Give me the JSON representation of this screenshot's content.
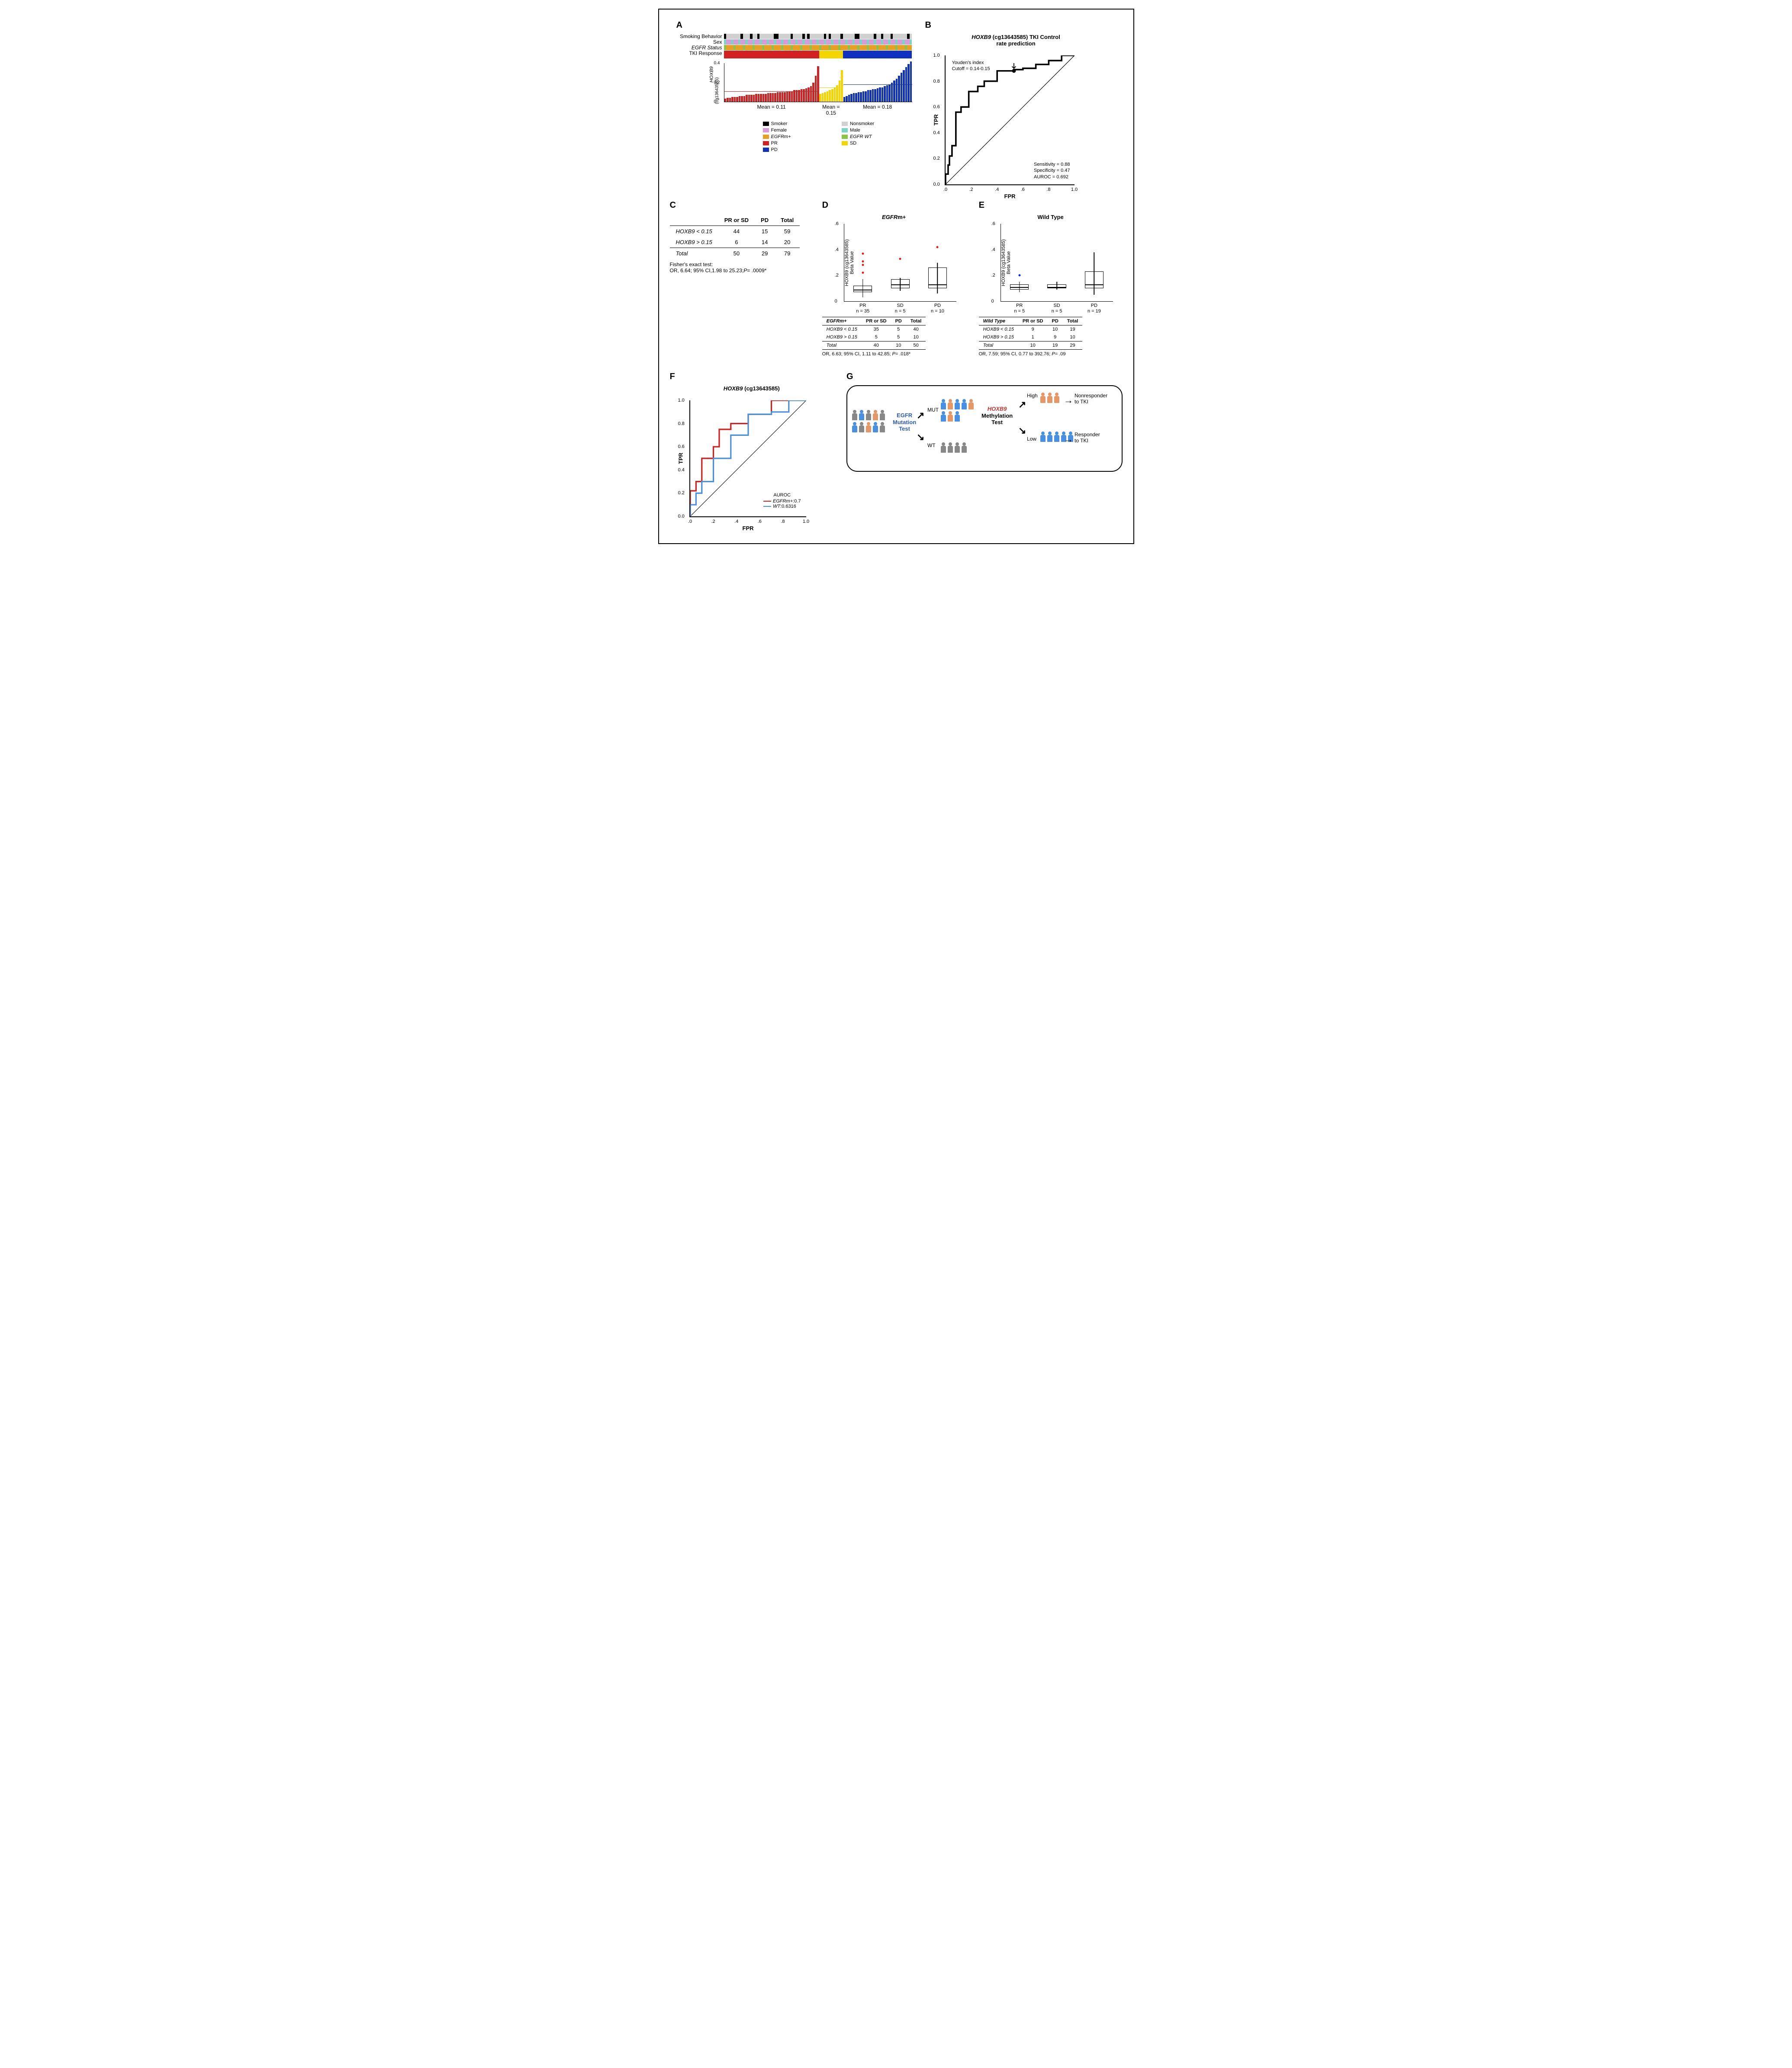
{
  "colors": {
    "smoker": "#000000",
    "nonsmoker": "#d0d0d0",
    "female": "#d89bd8",
    "male": "#7bd4c4",
    "egfrm": "#e8a023",
    "egfrwt": "#8bc34a",
    "pr": "#d32020",
    "sd": "#f5d500",
    "pd": "#1030c0",
    "grey": "#888888",
    "orange": "#e59866",
    "blue": "#4a90e2",
    "red_line": "#d32020",
    "blue_line": "#4a90e2",
    "text_blue": "#2e5cb8",
    "text_red": "#cc3333"
  },
  "panelA": {
    "tracks": [
      "Smoking Behavior",
      "Sex",
      "EGFR Status",
      "TKI Response"
    ],
    "ylabel1": "HOXB9",
    "ylabel2": "(cg13643585)",
    "ymax": 0.4,
    "yticks": [
      0,
      0.2,
      0.4
    ],
    "groups": [
      {
        "name": "PR",
        "color": "#d32020",
        "mean": 0.11,
        "n": 40,
        "bars": [
          0.03,
          0.04,
          0.04,
          0.05,
          0.05,
          0.05,
          0.06,
          0.06,
          0.06,
          0.07,
          0.07,
          0.07,
          0.07,
          0.08,
          0.08,
          0.08,
          0.08,
          0.08,
          0.09,
          0.09,
          0.09,
          0.09,
          0.1,
          0.1,
          0.1,
          0.1,
          0.11,
          0.11,
          0.11,
          0.12,
          0.12,
          0.12,
          0.13,
          0.13,
          0.14,
          0.15,
          0.16,
          0.2,
          0.27,
          0.37
        ]
      },
      {
        "name": "SD",
        "color": "#f5d500",
        "mean": 0.15,
        "n": 10,
        "bars": [
          0.08,
          0.09,
          0.1,
          0.11,
          0.12,
          0.13,
          0.15,
          0.17,
          0.22,
          0.33
        ]
      },
      {
        "name": "PD",
        "color": "#1030c0",
        "mean": 0.18,
        "n": 29,
        "bars": [
          0.05,
          0.06,
          0.07,
          0.08,
          0.09,
          0.09,
          0.1,
          0.1,
          0.11,
          0.11,
          0.12,
          0.12,
          0.13,
          0.13,
          0.14,
          0.15,
          0.15,
          0.16,
          0.17,
          0.18,
          0.2,
          0.22,
          0.24,
          0.27,
          0.3,
          0.33,
          0.36,
          0.39,
          0.42
        ]
      }
    ],
    "legend": [
      {
        "label": "Smoker",
        "colorKey": "smoker"
      },
      {
        "label": "Nonsmoker",
        "colorKey": "nonsmoker"
      },
      {
        "label": "Female",
        "colorKey": "female"
      },
      {
        "label": "Male",
        "colorKey": "male"
      },
      {
        "label": "EGFRm+",
        "colorKey": "egfrm",
        "italic": true
      },
      {
        "label": "EGFR WT",
        "colorKey": "egfrwt",
        "italic": true
      },
      {
        "label": "PR",
        "colorKey": "pr"
      },
      {
        "label": "SD",
        "colorKey": "sd"
      },
      {
        "label": "PD",
        "colorKey": "pd"
      }
    ]
  },
  "panelB": {
    "title": "HOXB9 (cg13643585) TKI Control rate prediction",
    "ylabel": "TPR",
    "xlabel": "FPR",
    "ticks": [
      0,
      0.2,
      0.4,
      0.6,
      0.8,
      1.0
    ],
    "annot_top": "Youden's index\nCutoff = 0.14-0.15",
    "annot_bottom": "Sensitivity = 0.88\nSpecificity = 0.47\nAUROC = 0.692",
    "roc_path": [
      [
        0,
        0
      ],
      [
        0,
        0.08
      ],
      [
        0.02,
        0.08
      ],
      [
        0.02,
        0.15
      ],
      [
        0.03,
        0.15
      ],
      [
        0.03,
        0.22
      ],
      [
        0.05,
        0.22
      ],
      [
        0.05,
        0.3
      ],
      [
        0.08,
        0.3
      ],
      [
        0.08,
        0.56
      ],
      [
        0.12,
        0.56
      ],
      [
        0.12,
        0.6
      ],
      [
        0.18,
        0.6
      ],
      [
        0.18,
        0.72
      ],
      [
        0.25,
        0.72
      ],
      [
        0.25,
        0.76
      ],
      [
        0.3,
        0.76
      ],
      [
        0.3,
        0.8
      ],
      [
        0.4,
        0.8
      ],
      [
        0.4,
        0.88
      ],
      [
        0.53,
        0.88
      ],
      [
        0.53,
        0.89
      ],
      [
        0.6,
        0.89
      ],
      [
        0.6,
        0.9
      ],
      [
        0.7,
        0.9
      ],
      [
        0.7,
        0.93
      ],
      [
        0.8,
        0.93
      ],
      [
        0.8,
        0.96
      ],
      [
        0.9,
        0.96
      ],
      [
        0.9,
        1.0
      ],
      [
        1.0,
        1.0
      ]
    ],
    "youden_point": [
      0.53,
      0.88
    ]
  },
  "panelC": {
    "headers": [
      "",
      "PR or SD",
      "PD",
      "Total"
    ],
    "rows": [
      {
        "label": "HOXB9 < 0.15",
        "vals": [
          44,
          15,
          59
        ]
      },
      {
        "label": "HOXB9 > 0.15",
        "vals": [
          6,
          14,
          20
        ]
      },
      {
        "label": "Total",
        "vals": [
          50,
          29,
          79
        ],
        "total": true
      }
    ],
    "caption": "Fisher's exact test:\nOR, 6.64; 95% CI,1.98 to 25.23;P= .0009*"
  },
  "panelD": {
    "title": "EGFRm+",
    "ylabel": "HOXB9 (cg13643585)\nBeta Value",
    "ymax": 0.6,
    "yticks": [
      0,
      0.2,
      0.4,
      0.6
    ],
    "cats": [
      {
        "label": "PR",
        "n": 35,
        "q1": 0.07,
        "med": 0.09,
        "q3": 0.12,
        "lo": 0.03,
        "hi": 0.17,
        "outliers": [
          0.22,
          0.28,
          0.31,
          0.37
        ]
      },
      {
        "label": "SD",
        "n": 5,
        "q1": 0.1,
        "med": 0.13,
        "q3": 0.17,
        "lo": 0.08,
        "hi": 0.18,
        "outliers": [
          0.33
        ]
      },
      {
        "label": "PD",
        "n": 10,
        "q1": 0.1,
        "med": 0.13,
        "q3": 0.26,
        "lo": 0.06,
        "hi": 0.3,
        "outliers": [
          0.42
        ]
      }
    ],
    "dot_color": "#d32020",
    "table": {
      "headers": [
        "EGFRm+",
        "PR or SD",
        "PD",
        "Total"
      ],
      "rows": [
        {
          "label": "HOXB9 < 0.15",
          "vals": [
            35,
            5,
            40
          ]
        },
        {
          "label": "HOXB9 > 0.15",
          "vals": [
            5,
            5,
            10
          ]
        },
        {
          "label": "Total",
          "vals": [
            40,
            10,
            50
          ],
          "total": true
        }
      ],
      "caption": "OR, 6.63; 95% CI, 1.11 to 42.85; P= .018*"
    }
  },
  "panelE": {
    "title": "Wild Type",
    "ylabel": "HOXB9 (cg13643585)\nBeta Value",
    "ymax": 0.6,
    "yticks": [
      0,
      0.2,
      0.4,
      0.6
    ],
    "cats": [
      {
        "label": "PR",
        "n": 5,
        "q1": 0.09,
        "med": 0.11,
        "q3": 0.13,
        "lo": 0.07,
        "hi": 0.15,
        "outliers": [
          0.2
        ]
      },
      {
        "label": "SD",
        "n": 5,
        "q1": 0.1,
        "med": 0.11,
        "q3": 0.13,
        "lo": 0.09,
        "hi": 0.15,
        "outliers": []
      },
      {
        "label": "PD",
        "n": 19,
        "q1": 0.1,
        "med": 0.13,
        "q3": 0.23,
        "lo": 0.05,
        "hi": 0.38,
        "outliers": []
      }
    ],
    "dot_color": "#1030c0",
    "table": {
      "headers": [
        "Wild Type",
        "PR or SD",
        "PD",
        "Total"
      ],
      "rows": [
        {
          "label": "HOXB9 < 0.15",
          "vals": [
            9,
            10,
            19
          ]
        },
        {
          "label": "HOXB9 > 0.15",
          "vals": [
            1,
            9,
            10
          ]
        },
        {
          "label": "Total",
          "vals": [
            10,
            19,
            29
          ],
          "total": true
        }
      ],
      "caption": "OR, 7.59; 95% CI, 0.77 to 392.76; P= .09"
    }
  },
  "panelF": {
    "title": "HOXB9 (cg13643585)",
    "ylabel": "TPR",
    "xlabel": "FPR",
    "ticks": [
      0,
      0.2,
      0.4,
      0.6,
      0.8,
      1.0
    ],
    "legend_title": "AUROC",
    "series": [
      {
        "name": "EGFRm+:0.7",
        "color": "#d32020",
        "path": [
          [
            0,
            0
          ],
          [
            0,
            0.22
          ],
          [
            0.05,
            0.22
          ],
          [
            0.05,
            0.3
          ],
          [
            0.1,
            0.3
          ],
          [
            0.1,
            0.5
          ],
          [
            0.2,
            0.5
          ],
          [
            0.2,
            0.6
          ],
          [
            0.25,
            0.6
          ],
          [
            0.25,
            0.75
          ],
          [
            0.35,
            0.75
          ],
          [
            0.35,
            0.8
          ],
          [
            0.5,
            0.8
          ],
          [
            0.5,
            0.88
          ],
          [
            0.7,
            0.88
          ],
          [
            0.7,
            1.0
          ],
          [
            1.0,
            1.0
          ]
        ]
      },
      {
        "name": "WT:0.6316",
        "color": "#4a90e2",
        "path": [
          [
            0,
            0
          ],
          [
            0,
            0.1
          ],
          [
            0.05,
            0.1
          ],
          [
            0.05,
            0.2
          ],
          [
            0.1,
            0.2
          ],
          [
            0.1,
            0.3
          ],
          [
            0.2,
            0.3
          ],
          [
            0.2,
            0.5
          ],
          [
            0.35,
            0.5
          ],
          [
            0.35,
            0.7
          ],
          [
            0.5,
            0.7
          ],
          [
            0.5,
            0.88
          ],
          [
            0.7,
            0.88
          ],
          [
            0.7,
            0.9
          ],
          [
            0.85,
            0.9
          ],
          [
            0.85,
            1.0
          ],
          [
            1.0,
            1.0
          ]
        ]
      }
    ]
  },
  "panelG": {
    "label_egfr": "EGFR\nMutation\nTest",
    "label_hoxb9": "HOXB9\nMethylation\nTest",
    "label_mut": "MUT",
    "label_wt": "WT",
    "label_high": "High",
    "label_low": "Low",
    "out_nonresp": "Nonresponder\nto TKI",
    "out_resp": "Responder\nto TKI"
  }
}
